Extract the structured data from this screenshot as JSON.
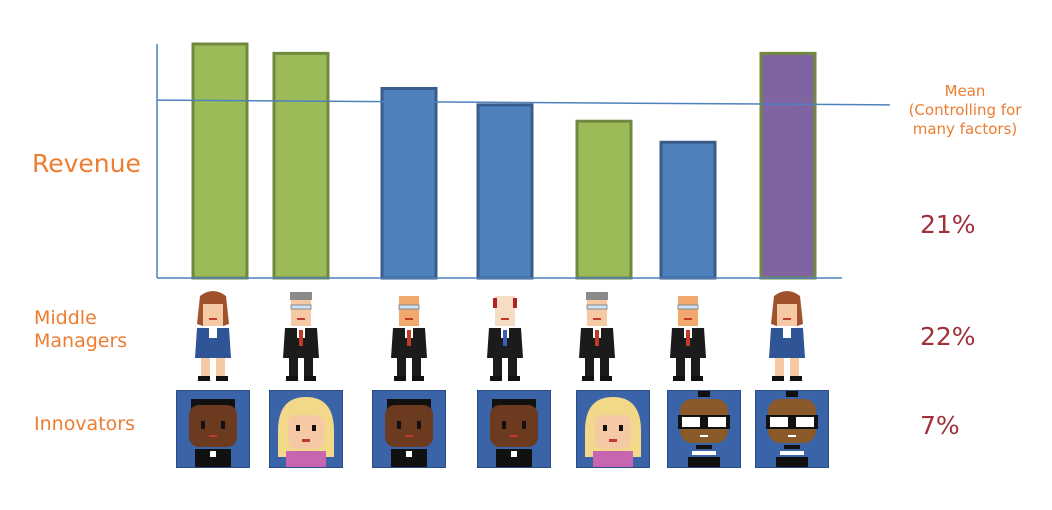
{
  "chart_data": {
    "type": "bar",
    "categories": [
      "",
      "",
      "",
      "",
      "",
      "",
      ""
    ],
    "values": [
      100,
      96,
      81,
      74,
      67,
      58,
      96
    ],
    "colors": [
      "#9BBB59",
      "#9BBB59",
      "#4F81BD",
      "#4F81BD",
      "#9BBB59",
      "#4F81BD",
      "#8064A2"
    ],
    "ylabel": "Revenue",
    "ylim": [
      0,
      100
    ],
    "mean_line": {
      "label": "Mean\n(Controlling for\nmany factors)",
      "start": 76,
      "end": 74
    }
  },
  "labels": {
    "revenue": "Revenue",
    "middle_managers": "Middle\nManagers",
    "innovators": "Innovators",
    "mean_line1": "Mean",
    "mean_line2": "(Controlling for",
    "mean_line3": "many factors)"
  },
  "percentages": {
    "revenue": "21%",
    "middle_managers": "22%",
    "innovators": "7%"
  },
  "managers": [
    {
      "icon": "female-manager-icon"
    },
    {
      "icon": "older-male-manager-icon"
    },
    {
      "icon": "bald-male-manager-icon"
    },
    {
      "icon": "red-hair-male-manager-icon"
    },
    {
      "icon": "older-male-manager-icon"
    },
    {
      "icon": "bald-male-manager-icon"
    },
    {
      "icon": "female-manager-icon"
    }
  ],
  "innovators": [
    {
      "icon": "dark-skin-innovator-icon"
    },
    {
      "icon": "blonde-innovator-icon"
    },
    {
      "icon": "dark-skin-innovator-icon"
    },
    {
      "icon": "dark-skin-innovator-icon"
    },
    {
      "icon": "blonde-innovator-icon"
    },
    {
      "icon": "goggles-innovator-icon"
    },
    {
      "icon": "goggles-innovator-icon"
    }
  ],
  "colors": {
    "axis": "#4F81BD",
    "label_orange": "#ED7D31",
    "pct_red": "#A0303A"
  }
}
